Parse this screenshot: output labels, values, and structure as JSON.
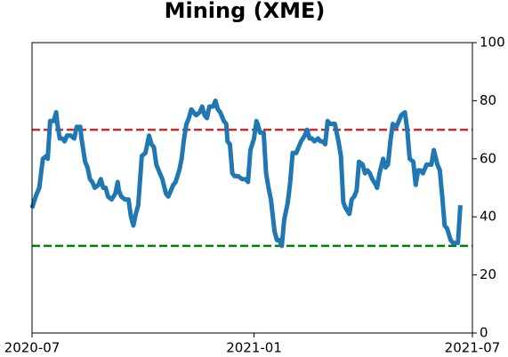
{
  "chart_data": {
    "type": "line",
    "title": "Mining (XME)",
    "color": "#1f77b4",
    "x": [
      0,
      3,
      6,
      9,
      12,
      13,
      15,
      18,
      20,
      21,
      23,
      25,
      27,
      29,
      32,
      35,
      37,
      40,
      41,
      44,
      46,
      48,
      50,
      52,
      55,
      57,
      59,
      61,
      63,
      66,
      69,
      71,
      72,
      74,
      77,
      80,
      82,
      84,
      86,
      88,
      91,
      94,
      97,
      99,
      101,
      103,
      106,
      108,
      111,
      113,
      115,
      117,
      119,
      122,
      124,
      126,
      128,
      130,
      132,
      134,
      136,
      139,
      141,
      143,
      145,
      147,
      150,
      152,
      154,
      156,
      159,
      161,
      162,
      164,
      166,
      168,
      171,
      174,
      177,
      179,
      181,
      184,
      186,
      187,
      189,
      192,
      194,
      196,
      198,
      201,
      203,
      205,
      207,
      209,
      212,
      214,
      216,
      219,
      221,
      223,
      226,
      228,
      230,
      232,
      234,
      237,
      239,
      241,
      243,
      245,
      247,
      249,
      251,
      254,
      256,
      258,
      260,
      263,
      265,
      267,
      269,
      271,
      274,
      276,
      278,
      280,
      282,
      285,
      286,
      288,
      291,
      293,
      295,
      297,
      299,
      302,
      304,
      306,
      309,
      311,
      313,
      316,
      318,
      320,
      322,
      324,
      327,
      329,
      331,
      333,
      336,
      338,
      340,
      342,
      344,
      347,
      349,
      351,
      353,
      355
    ],
    "values": [
      43,
      47,
      50,
      60,
      61,
      60,
      73,
      73,
      76,
      72,
      67,
      67,
      66,
      68,
      68,
      67,
      71,
      71,
      67,
      59,
      57,
      53,
      52,
      50,
      51,
      53,
      50,
      50,
      47,
      46,
      48,
      52,
      49,
      47,
      46,
      46,
      40,
      37,
      41,
      44,
      61,
      62,
      68,
      65,
      64,
      58,
      55,
      53,
      48,
      47,
      49,
      51,
      52,
      56,
      60,
      67,
      72,
      74,
      77,
      76,
      75,
      76,
      78,
      75,
      74,
      78,
      78,
      80,
      77,
      76,
      73,
      72,
      66,
      65,
      55,
      54,
      54,
      53,
      53,
      52,
      63,
      67,
      73,
      72,
      69,
      69,
      55,
      50,
      46,
      35,
      32,
      32,
      30,
      39,
      45,
      52,
      62,
      62,
      64,
      66,
      68,
      70,
      67,
      67,
      66,
      67,
      66,
      66,
      65,
      73,
      72,
      72,
      72,
      66,
      61,
      45,
      43,
      41,
      46,
      47,
      49,
      59,
      58,
      55,
      56,
      55,
      53,
      51,
      50,
      55,
      60,
      57,
      58,
      66,
      72,
      71,
      73,
      75,
      76,
      70,
      60,
      59,
      51,
      56,
      56,
      55,
      58,
      58,
      58,
      63,
      58,
      56,
      47,
      37,
      36,
      32,
      31,
      31,
      31,
      44
    ],
    "xlim": [
      0,
      365
    ],
    "xticks": [
      {
        "value": 0,
        "label": "2020-07"
      },
      {
        "value": 184,
        "label": "2021-01"
      },
      {
        "value": 365,
        "label": "2021-07"
      }
    ],
    "ylim": [
      0,
      100
    ],
    "yticks": [
      0,
      20,
      40,
      60,
      80,
      100
    ],
    "hlines": [
      {
        "value": 70,
        "color": "#d62728"
      },
      {
        "value": 30,
        "color": "#008000"
      }
    ]
  }
}
